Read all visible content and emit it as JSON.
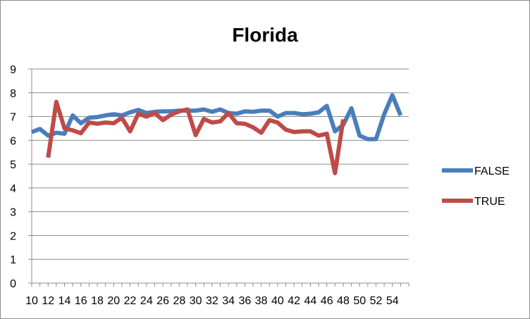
{
  "chart_data": {
    "type": "line",
    "title": "Florida",
    "xlabel": "",
    "ylabel": "",
    "ylim": [
      0,
      9
    ],
    "yticks": [
      0,
      1,
      2,
      3,
      4,
      5,
      6,
      7,
      8,
      9
    ],
    "xlim": [
      10,
      56
    ],
    "xticks": [
      10,
      12,
      14,
      16,
      18,
      20,
      22,
      24,
      26,
      28,
      30,
      32,
      34,
      36,
      38,
      40,
      42,
      44,
      46,
      48,
      50,
      52,
      54
    ],
    "grid": "horizontal",
    "legend": "right",
    "series": [
      {
        "name": "FALSE",
        "color": "#4a7ebb",
        "x": [
          10,
          11,
          12,
          13,
          14,
          15,
          16,
          17,
          18,
          19,
          20,
          21,
          22,
          23,
          24,
          25,
          26,
          27,
          28,
          29,
          30,
          31,
          32,
          33,
          34,
          35,
          36,
          37,
          38,
          39,
          40,
          41,
          42,
          43,
          44,
          45,
          46,
          47,
          48,
          49,
          50,
          51,
          52,
          53,
          54,
          55
        ],
        "y": [
          6.35,
          6.48,
          6.2,
          6.32,
          6.28,
          7.05,
          6.72,
          6.95,
          6.98,
          7.05,
          7.1,
          7.05,
          7.18,
          7.28,
          7.15,
          7.2,
          7.22,
          7.22,
          7.25,
          7.25,
          7.25,
          7.3,
          7.2,
          7.3,
          7.15,
          7.12,
          7.22,
          7.2,
          7.25,
          7.25,
          7.0,
          7.15,
          7.15,
          7.1,
          7.12,
          7.18,
          7.45,
          6.38,
          6.65,
          7.35,
          6.2,
          6.05,
          6.05,
          7.1,
          7.9,
          7.05
        ]
      },
      {
        "name": "TRUE",
        "color": "#be4b48",
        "x": [
          12,
          13,
          14,
          15,
          16,
          17,
          18,
          19,
          20,
          21,
          22,
          23,
          24,
          25,
          26,
          27,
          28,
          29,
          30,
          31,
          32,
          33,
          34,
          35,
          36,
          37,
          38,
          39,
          40,
          41,
          42,
          43,
          44,
          45,
          46,
          47,
          48
        ],
        "y": [
          5.28,
          7.62,
          6.5,
          6.42,
          6.3,
          6.75,
          6.7,
          6.75,
          6.72,
          6.95,
          6.38,
          7.12,
          7.0,
          7.15,
          6.85,
          7.08,
          7.22,
          7.3,
          6.22,
          6.9,
          6.75,
          6.8,
          7.15,
          6.72,
          6.7,
          6.55,
          6.32,
          6.85,
          6.75,
          6.45,
          6.35,
          6.38,
          6.38,
          6.2,
          6.28,
          4.62,
          6.88
        ]
      }
    ]
  }
}
